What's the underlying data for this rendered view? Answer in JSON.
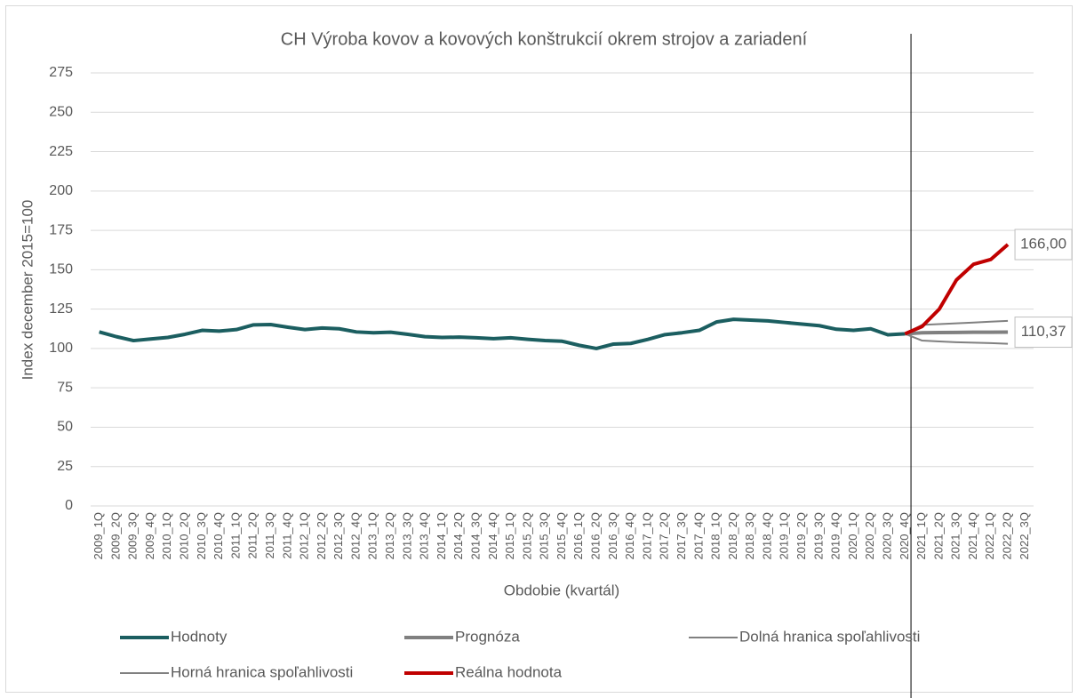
{
  "chart_data": {
    "type": "line",
    "title": "CH Výroba kovov a kovových konštrukcií okrem strojov a zariadení",
    "y_label": "Index december 2015=100",
    "x_label": "Obdobie (kvartál)",
    "categories": [
      "2009_1Q",
      "2009_2Q",
      "2009_3Q",
      "2009_4Q",
      "2010_1Q",
      "2010_2Q",
      "2010_3Q",
      "2010_4Q",
      "2011_1Q",
      "2011_2Q",
      "2011_3Q",
      "2011_4Q",
      "2012_1Q",
      "2012_2Q",
      "2012_3Q",
      "2012_4Q",
      "2013_1Q",
      "2013_2Q",
      "2013_3Q",
      "2013_4Q",
      "2014_1Q",
      "2014_2Q",
      "2014_3Q",
      "2014_4Q",
      "2015_1Q",
      "2015_2Q",
      "2015_3Q",
      "2015_4Q",
      "2016_1Q",
      "2016_2Q",
      "2016_3Q",
      "2016_4Q",
      "2017_1Q",
      "2017_2Q",
      "2017_3Q",
      "2017_4Q",
      "2018_1Q",
      "2018_2Q",
      "2018_3Q",
      "2018_4Q",
      "2019_1Q",
      "2019_2Q",
      "2019_3Q",
      "2019_4Q",
      "2020_1Q",
      "2020_2Q",
      "2020_3Q",
      "2020_4Q",
      "2021_1Q",
      "2021_2Q",
      "2021_3Q",
      "2021_4Q",
      "2022_1Q",
      "2022_2Q",
      "2022_3Q"
    ],
    "ylim": [
      0,
      275
    ],
    "yticks": [
      0,
      25,
      50,
      75,
      100,
      125,
      150,
      175,
      200,
      225,
      250,
      275
    ],
    "grid": true,
    "legend": "bottom",
    "series": [
      {
        "name": "Hodnoty",
        "color": "#1b5e60",
        "width": 4,
        "values": [
          110.5,
          107.5,
          105,
          106,
          107,
          109,
          111.5,
          111,
          112,
          115,
          115.2,
          113.5,
          112,
          113,
          112.5,
          110.5,
          110,
          110.3,
          109,
          107.5,
          107,
          107.2,
          106.8,
          106.2,
          106.8,
          105.8,
          105,
          104.6,
          102,
          100,
          102.8,
          103.2,
          105.8,
          108.8,
          110,
          111.5,
          116.8,
          118.5,
          118,
          117.5,
          116.5,
          115.5,
          114.5,
          112.2,
          111.5,
          112.5,
          108.7,
          109.3,
          null,
          null,
          null,
          null,
          null,
          null,
          null
        ]
      },
      {
        "name": "Prognóza",
        "color": "#808080",
        "width": 4,
        "values": [
          null,
          null,
          null,
          null,
          null,
          null,
          null,
          null,
          null,
          null,
          null,
          null,
          null,
          null,
          null,
          null,
          null,
          null,
          null,
          null,
          null,
          null,
          null,
          null,
          null,
          null,
          null,
          null,
          null,
          null,
          null,
          null,
          null,
          null,
          null,
          null,
          null,
          null,
          null,
          null,
          null,
          null,
          null,
          null,
          null,
          null,
          null,
          109.3,
          110,
          110.1,
          110.2,
          110.3,
          110.3,
          110.37,
          null
        ],
        "value_labels": [
          null,
          null,
          null,
          null,
          null,
          null,
          null,
          null,
          null,
          null,
          null,
          null,
          null,
          null,
          null,
          null,
          null,
          null,
          null,
          null,
          null,
          null,
          null,
          null,
          null,
          null,
          null,
          null,
          null,
          null,
          null,
          null,
          null,
          null,
          null,
          null,
          null,
          null,
          null,
          null,
          null,
          null,
          null,
          null,
          null,
          null,
          null,
          null,
          null,
          null,
          null,
          null,
          null,
          "110,37",
          null
        ]
      },
      {
        "name": "Dolná hranica spoľahlivosti",
        "color": "#808080",
        "width": 2,
        "values": [
          null,
          null,
          null,
          null,
          null,
          null,
          null,
          null,
          null,
          null,
          null,
          null,
          null,
          null,
          null,
          null,
          null,
          null,
          null,
          null,
          null,
          null,
          null,
          null,
          null,
          null,
          null,
          null,
          null,
          null,
          null,
          null,
          null,
          null,
          null,
          null,
          null,
          null,
          null,
          null,
          null,
          null,
          null,
          null,
          null,
          null,
          null,
          109.3,
          105,
          104.5,
          104,
          103.7,
          103.4,
          103,
          null
        ]
      },
      {
        "name": "Horná hranica spoľahlivosti",
        "color": "#808080",
        "width": 2,
        "values": [
          null,
          null,
          null,
          null,
          null,
          null,
          null,
          null,
          null,
          null,
          null,
          null,
          null,
          null,
          null,
          null,
          null,
          null,
          null,
          null,
          null,
          null,
          null,
          null,
          null,
          null,
          null,
          null,
          null,
          null,
          null,
          null,
          null,
          null,
          null,
          null,
          null,
          null,
          null,
          null,
          null,
          null,
          null,
          null,
          null,
          null,
          null,
          109.3,
          115,
          115.5,
          116,
          116.5,
          117,
          117.5,
          null
        ]
      },
      {
        "name": "Reálna hodnota",
        "color": "#c00000",
        "width": 4,
        "values": [
          null,
          null,
          null,
          null,
          null,
          null,
          null,
          null,
          null,
          null,
          null,
          null,
          null,
          null,
          null,
          null,
          null,
          null,
          null,
          null,
          null,
          null,
          null,
          null,
          null,
          null,
          null,
          null,
          null,
          null,
          null,
          null,
          null,
          null,
          null,
          null,
          null,
          null,
          null,
          null,
          null,
          null,
          null,
          null,
          null,
          null,
          null,
          109.3,
          114,
          125,
          143.5,
          153.5,
          156.5,
          166,
          null
        ],
        "value_labels": [
          null,
          null,
          null,
          null,
          null,
          null,
          null,
          null,
          null,
          null,
          null,
          null,
          null,
          null,
          null,
          null,
          null,
          null,
          null,
          null,
          null,
          null,
          null,
          null,
          null,
          null,
          null,
          null,
          null,
          null,
          null,
          null,
          null,
          null,
          null,
          null,
          null,
          null,
          null,
          null,
          null,
          null,
          null,
          null,
          null,
          null,
          null,
          null,
          null,
          null,
          null,
          null,
          null,
          "166,00",
          null
        ]
      }
    ]
  }
}
